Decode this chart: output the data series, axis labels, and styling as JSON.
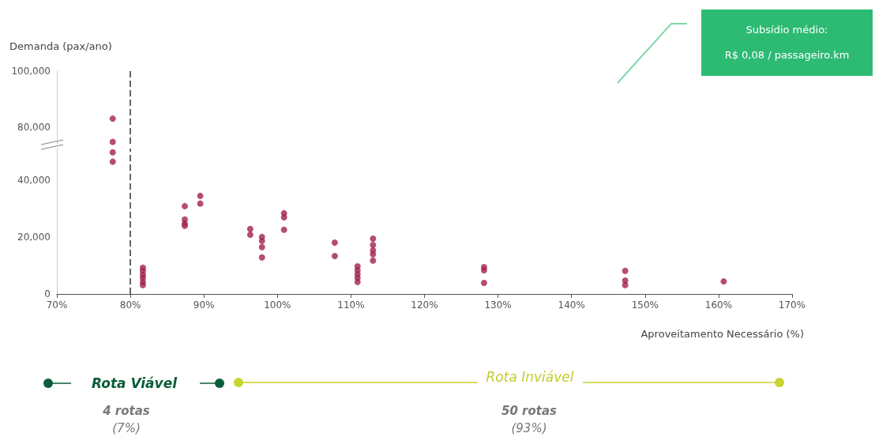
{
  "chart_data": [
    {
      "type": "scatter",
      "ylabel": "Demanda (pax/ano)",
      "annotations": [
        "Subsídio médio:",
        "R$ 0,08 / passageiro.km",
        "Rota Viável",
        "4 rotas",
        "(7%)",
        "Rota Inviável",
        "50 rotas",
        "(93%)"
      ],
      "x": [
        77.6,
        77.6
      ],
      "values": [
        83000,
        74700
      ],
      "color": "#a3224a",
      "marker": "circle",
      "xlim": [
        70,
        170
      ],
      "ylim": [
        74000,
        100000
      ],
      "yticks": [
        {
          "value": 80000,
          "label": "80,000"
        },
        {
          "value": 100000,
          "label": "100,000"
        }
      ],
      "tick_labels": "y",
      "ref_lines": [
        {
          "axis": "x",
          "value": 80,
          "color": "#666666",
          "line_style": "dashed"
        }
      ],
      "grid": false
    },
    {
      "type": "scatter",
      "xlabel": "Aproveitamento Necessário (%)",
      "x": [
        77.6,
        77.6,
        81.7,
        81.7,
        81.7,
        81.7,
        81.7,
        81.7,
        87.4,
        87.4,
        87.4,
        87.4,
        89.5,
        89.5,
        96.3,
        96.3,
        97.9,
        97.9,
        97.9,
        97.9,
        100.9,
        100.9,
        100.9,
        107.8,
        107.8,
        110.9,
        110.9,
        110.9,
        110.9,
        110.9,
        113,
        113,
        113,
        113,
        113,
        128.1,
        128.1,
        128.1,
        147.3,
        147.3,
        147.3,
        160.7
      ],
      "values": [
        49700,
        46400,
        9200,
        8100,
        6700,
        5600,
        4200,
        3100,
        30800,
        26100,
        24700,
        23900,
        34400,
        31700,
        22800,
        20800,
        20000,
        18600,
        16400,
        12800,
        28300,
        26900,
        22500,
        18000,
        13300,
        9700,
        8300,
        6900,
        5600,
        4200,
        19400,
        17200,
        15300,
        13900,
        11700,
        9400,
        8300,
        3900,
        8100,
        4700,
        3100,
        4400
      ],
      "color": "#a3224a",
      "marker": "circle",
      "xlim": [
        70,
        170
      ],
      "xticks": [
        {
          "value": 70,
          "label": "70%"
        },
        {
          "value": 80,
          "label": "80%"
        },
        {
          "value": 90,
          "label": "90%"
        },
        {
          "value": 100,
          "label": "100%"
        },
        {
          "value": 110,
          "label": "110%"
        },
        {
          "value": 120,
          "label": "120%"
        },
        {
          "value": 130,
          "label": "130%"
        },
        {
          "value": 140,
          "label": "140%"
        },
        {
          "value": 150,
          "label": "150%"
        },
        {
          "value": 160,
          "label": "160%"
        },
        {
          "value": 170,
          "label": "170%"
        }
      ],
      "ylim": [
        0,
        51000
      ],
      "yticks": [
        0,
        {
          "value": 20000,
          "label": "20,000"
        },
        {
          "value": 40000,
          "label": "40,000"
        }
      ],
      "ref_lines": [
        {
          "axis": "x",
          "value": 80,
          "color": "#666666",
          "line_style": "dashed"
        }
      ],
      "grid": false
    }
  ]
}
